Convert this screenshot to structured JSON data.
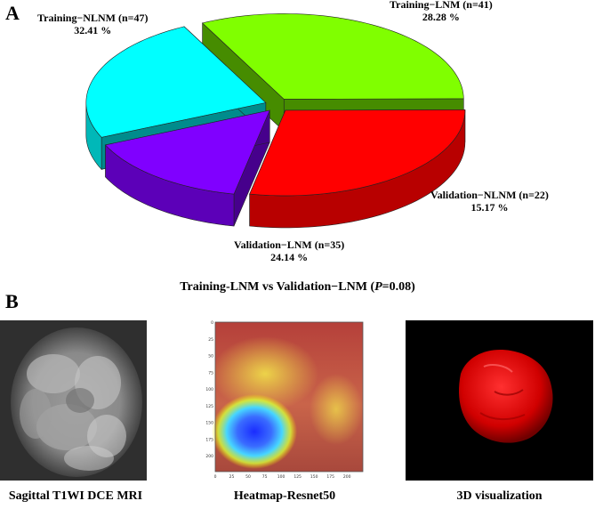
{
  "panels": {
    "a": {
      "label": "A"
    },
    "b": {
      "label": "B"
    }
  },
  "chart_data": {
    "type": "pie",
    "style": "3d-exploded",
    "title": "",
    "slices": [
      {
        "name": "Training−NLNM (n=47)",
        "percent_label": "32.41 %",
        "value": 32.41,
        "color": "#80ff00"
      },
      {
        "name": "Training−LNM (n=41)",
        "percent_label": "28.28 %",
        "value": 28.28,
        "color": "#ff0000"
      },
      {
        "name": "Validation−NLNM (n=22)",
        "percent_label": "15.17 %",
        "value": 15.17,
        "color": "#8000ff"
      },
      {
        "name": "Validation−LNM (n=35)",
        "percent_label": "24.14 %",
        "value": 24.14,
        "color": "#00ffff"
      }
    ]
  },
  "comparison": {
    "prefix": "Training-LNM vs Validation−LNM (",
    "p_symbol": "P",
    "suffix": "=0.08)"
  },
  "images": [
    {
      "caption": "Sagittal T1WI DCE MRI"
    },
    {
      "caption": "Heatmap-Resnet50",
      "y_ticks": [
        "0",
        "25",
        "50",
        "75",
        "100",
        "125",
        "150",
        "175",
        "200"
      ],
      "x_ticks": [
        "0",
        "25",
        "50",
        "75",
        "100",
        "125",
        "150",
        "175",
        "200"
      ]
    },
    {
      "caption": "3D visualization"
    }
  ]
}
